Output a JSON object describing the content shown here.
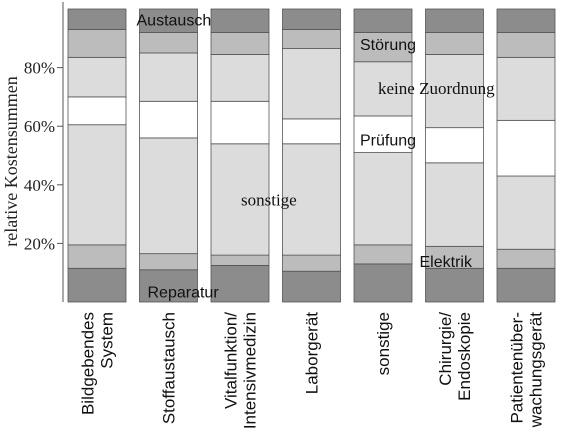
{
  "chart_data": {
    "type": "bar",
    "stacked": true,
    "normalized": true,
    "ylabel": "relative Kostensummen",
    "ylim": [
      0,
      100
    ],
    "yticks": [
      {
        "value": 20,
        "label": "20%"
      },
      {
        "value": 40,
        "label": "40%"
      },
      {
        "value": 60,
        "label": "60%"
      },
      {
        "value": 80,
        "label": "80%"
      }
    ],
    "grid": false,
    "categories": [
      [
        "Bildgebendes",
        "System"
      ],
      [
        "Stoffaustausch"
      ],
      [
        "Vitalfunktion/",
        "Intensivmedizin"
      ],
      [
        "Laborgerät"
      ],
      [
        "sonstige"
      ],
      [
        "Chirurgie/",
        "Endoskopie"
      ],
      [
        "Patientenüber-",
        "wachungsgerät"
      ]
    ],
    "series": [
      {
        "name": "Reparatur",
        "color": "#8c8c8c",
        "values": [
          11.5,
          11,
          12.5,
          10.5,
          13,
          11.5,
          11.5
        ]
      },
      {
        "name": "Elektrik",
        "color": "#bcbcbc",
        "values": [
          8,
          5.5,
          3.5,
          5.5,
          6.5,
          7.5,
          6.5
        ]
      },
      {
        "name": "sonstige",
        "color": "#dcdcdc",
        "values": [
          41,
          39.5,
          38,
          38,
          31.5,
          28.5,
          25
        ]
      },
      {
        "name": "Prüfung",
        "color": "#ffffff",
        "values": [
          9.5,
          12.5,
          14.5,
          8.5,
          12.5,
          12,
          19
        ]
      },
      {
        "name": "keine Zuordnung",
        "color": "#dcdcdc",
        "values": [
          13.5,
          16.5,
          16,
          24,
          18.5,
          25,
          21.5
        ]
      },
      {
        "name": "Störung",
        "color": "#bcbcbc",
        "values": [
          9.5,
          7,
          7.5,
          6.5,
          10,
          7.5,
          8.5
        ]
      },
      {
        "name": "Austausch",
        "color": "#8c8c8c",
        "values": [
          7,
          8,
          8,
          7,
          8,
          8,
          8
        ]
      }
    ],
    "annotations": [
      {
        "text": "Austausch",
        "category": 1,
        "value": 96.5,
        "style": "sans",
        "anchor": "start"
      },
      {
        "text": "Störung",
        "category": 4,
        "value": 88,
        "style": "sans",
        "anchor": "start"
      },
      {
        "text": "keine Zuordnung",
        "category": 4,
        "value": 73,
        "style": "serif",
        "anchor": "start"
      },
      {
        "text": "Prüfung",
        "category": 4,
        "value": 55.5,
        "style": "sans",
        "anchor": "start"
      },
      {
        "text": "sonstige",
        "category": 2,
        "value": 35,
        "style": "serif",
        "anchor": "start"
      },
      {
        "text": "Elektrik",
        "category": 5,
        "value": 14,
        "style": "sans",
        "anchor": "start"
      },
      {
        "text": "Reparatur",
        "category": 1,
        "value": 3.5,
        "style": "sans",
        "anchor": "start"
      }
    ]
  }
}
